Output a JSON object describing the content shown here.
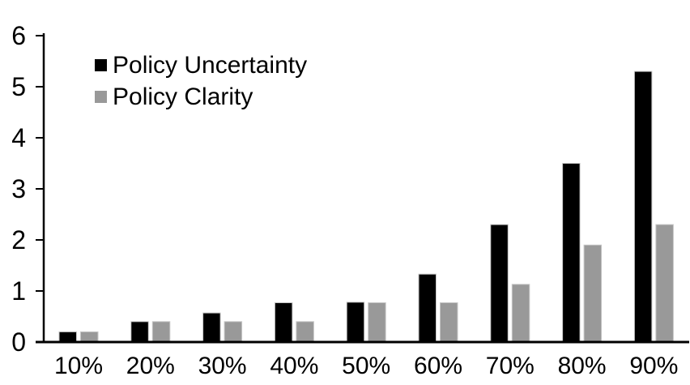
{
  "chart_data": {
    "type": "bar",
    "categories": [
      "10%",
      "20%",
      "30%",
      "40%",
      "50%",
      "60%",
      "70%",
      "80%",
      "90%"
    ],
    "series": [
      {
        "name": "Policy Uncertainty",
        "color": "#000000",
        "values": [
          0.2,
          0.4,
          0.57,
          0.77,
          0.78,
          1.33,
          2.3,
          3.5,
          5.3
        ]
      },
      {
        "name": "Policy Clarity",
        "color": "#999999",
        "values": [
          0.2,
          0.4,
          0.4,
          0.4,
          0.77,
          0.77,
          1.13,
          1.9,
          2.3
        ]
      }
    ],
    "ylim": [
      0,
      6
    ],
    "yticks": [
      0,
      1,
      2,
      3,
      4,
      5,
      6
    ],
    "grid": false,
    "legend_position": "top-left-inside",
    "axis_color": "#000000",
    "bar_outline_color": "#c6c6c6",
    "background_color": "#ffffff"
  }
}
